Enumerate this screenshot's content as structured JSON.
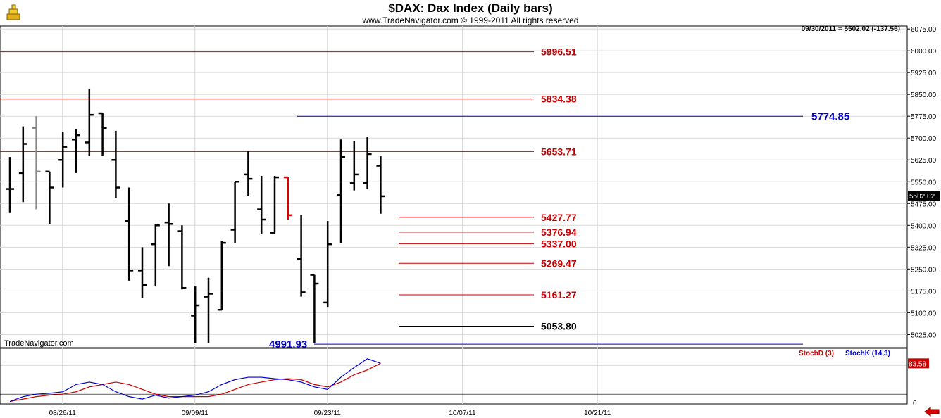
{
  "header": {
    "title": "$DAX:  Dax Index  (Daily bars)",
    "copyright": "www.TradeNavigator.com © 1999-2011 All rights reserved",
    "status": "09/30/2011 = 5502.02 (-137.56)",
    "watermark": "TradeNavigator.com"
  },
  "colors": {
    "up_bar": "#00dd00",
    "down_bar": "#dd0000",
    "bar": "#000000",
    "resistance": "#cc0000",
    "projection": "#0000cc"
  },
  "icons": {
    "logo": "gold-bars-icon",
    "nav": "left-arrow-icon"
  },
  "chart_data": [
    {
      "type": "bar",
      "subtype": "ohlc",
      "title": "$DAX:  Dax Index  (Daily bars)",
      "x_tick_labels": [
        "08/26/11",
        "09/09/11",
        "09/23/11",
        "10/07/11",
        "10/21/11"
      ],
      "y_tick_labels": [
        "6075.00",
        "6000.00",
        "5925.00",
        "5850.00",
        "5775.00",
        "5700.00",
        "5625.00",
        "5550.00",
        "5475.00",
        "5400.00",
        "5325.00",
        "5250.00",
        "5175.00",
        "5100.00",
        "5025.00"
      ],
      "ylim": [
        4980,
        6085
      ],
      "last_value_label": "5502.02",
      "grid": true,
      "bars": [
        {
          "o": 5525,
          "h": 5635,
          "l": 5445,
          "c": 5525,
          "color": "black"
        },
        {
          "o": 5580,
          "h": 5740,
          "l": 5480,
          "c": 5680,
          "color": "black"
        },
        {
          "o": 5735,
          "h": 5775,
          "l": 5455,
          "c": 5585,
          "color": "gray"
        },
        {
          "o": 5585,
          "h": 5585,
          "l": 5405,
          "c": 5530,
          "color": "black"
        },
        {
          "o": 5625,
          "h": 5720,
          "l": 5530,
          "c": 5670,
          "color": "black"
        },
        {
          "o": 5695,
          "h": 5730,
          "l": 5580,
          "c": 5710,
          "color": "black"
        },
        {
          "o": 5685,
          "h": 5870,
          "l": 5640,
          "c": 5780,
          "color": "black"
        },
        {
          "o": 5785,
          "h": 5785,
          "l": 5640,
          "c": 5735,
          "color": "black"
        },
        {
          "o": 5625,
          "h": 5725,
          "l": 5495,
          "c": 5530,
          "color": "black"
        },
        {
          "o": 5415,
          "h": 5530,
          "l": 5210,
          "c": 5245,
          "color": "black"
        },
        {
          "o": 5245,
          "h": 5325,
          "l": 5150,
          "c": 5195,
          "color": "black"
        },
        {
          "o": 5335,
          "h": 5405,
          "l": 5190,
          "c": 5400,
          "color": "black"
        },
        {
          "o": 5410,
          "h": 5475,
          "l": 5260,
          "c": 5405,
          "color": "black"
        },
        {
          "o": 5380,
          "h": 5400,
          "l": 5180,
          "c": 5185,
          "color": "black"
        },
        {
          "o": 5090,
          "h": 5190,
          "l": 4995,
          "c": 5125,
          "color": "black"
        },
        {
          "o": 5155,
          "h": 5220,
          "l": 4995,
          "c": 5165,
          "color": "black"
        },
        {
          "o": 5110,
          "h": 5345,
          "l": 5110,
          "c": 5340,
          "color": "black"
        },
        {
          "o": 5385,
          "h": 5550,
          "l": 5340,
          "c": 5550,
          "color": "black"
        },
        {
          "o": 5575,
          "h": 5655,
          "l": 5500,
          "c": 5560,
          "color": "black"
        },
        {
          "o": 5455,
          "h": 5570,
          "l": 5370,
          "c": 5420,
          "color": "black"
        },
        {
          "o": 5375,
          "h": 5570,
          "l": 5375,
          "c": 5565,
          "color": "black"
        },
        {
          "o": 5565,
          "h": 5565,
          "l": 5420,
          "c": 5435,
          "color": "red"
        },
        {
          "o": 5285,
          "h": 5435,
          "l": 5155,
          "c": 5170,
          "color": "black"
        },
        {
          "o": 5230,
          "h": 5230,
          "l": 4995,
          "c": 5200,
          "color": "black"
        },
        {
          "o": 5135,
          "h": 5415,
          "l": 5120,
          "c": 5335,
          "color": "black"
        },
        {
          "o": 5505,
          "h": 5695,
          "l": 5340,
          "c": 5635,
          "color": "black"
        },
        {
          "o": 5545,
          "h": 5690,
          "l": 5520,
          "c": 5575,
          "color": "black"
        },
        {
          "o": 5545,
          "h": 5705,
          "l": 5525,
          "c": 5645,
          "color": "black"
        },
        {
          "o": 5605,
          "h": 5640,
          "l": 5440,
          "c": 5500,
          "color": "black"
        }
      ],
      "levels": [
        {
          "value": 5996.51,
          "label": "5996.51",
          "color": "#cc0000"
        },
        {
          "value": 5834.38,
          "label": "5834.38",
          "color": "#cc0000"
        },
        {
          "value": 5774.85,
          "label": "5774.85",
          "color": "#0000cc"
        },
        {
          "value": 5653.71,
          "label": "5653.71",
          "color": "#cc0000"
        },
        {
          "value": 5427.77,
          "label": "5427.77",
          "color": "#cc0000"
        },
        {
          "value": 5376.94,
          "label": "5376.94",
          "color": "#cc0000"
        },
        {
          "value": 5337.0,
          "label": "5337.00",
          "color": "#cc0000"
        },
        {
          "value": 5269.47,
          "label": "5269.47",
          "color": "#cc0000"
        },
        {
          "value": 5161.27,
          "label": "5161.27",
          "color": "#cc0000"
        },
        {
          "value": 5053.8,
          "label": "5053.80",
          "color": "#000000"
        },
        {
          "value": 4991.93,
          "label": "4991.93",
          "color": "#0000cc"
        }
      ]
    },
    {
      "type": "line",
      "title": "",
      "y_tick_labels": [
        "0"
      ],
      "last_value_label": "83.58",
      "ylim": [
        0,
        100
      ],
      "reference_lines": [
        80,
        20
      ],
      "series": [
        {
          "name": "StochD (3)",
          "color": "#cc0000",
          "values": [
            5,
            10,
            15,
            18,
            20,
            25,
            35,
            40,
            45,
            40,
            30,
            20,
            15,
            15,
            15,
            15,
            20,
            30,
            40,
            45,
            50,
            52,
            50,
            40,
            35,
            45,
            60,
            70,
            83.58
          ]
        },
        {
          "name": "StochK (14,3)",
          "color": "#0000cc",
          "values": [
            5,
            15,
            20,
            22,
            25,
            40,
            45,
            40,
            25,
            15,
            10,
            18,
            12,
            15,
            18,
            25,
            40,
            50,
            55,
            55,
            52,
            50,
            45,
            35,
            30,
            55,
            75,
            93,
            83.58
          ]
        }
      ]
    }
  ]
}
